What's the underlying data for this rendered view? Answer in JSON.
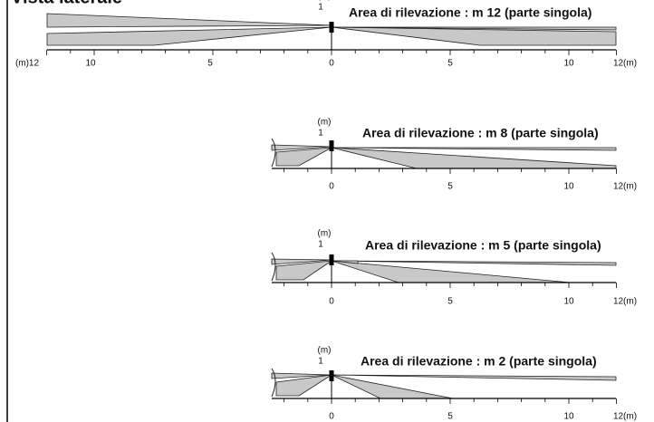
{
  "header": {
    "title": "Vista laterale"
  },
  "panels": [
    {
      "unit": "(m)",
      "height": "1",
      "title": "Area di rilevazione : m 12 (parte singola)",
      "ticks": [
        "(m)12",
        "10",
        "5",
        "0",
        "5",
        "10",
        "12(m)"
      ]
    },
    {
      "unit": "(m)",
      "height": "1",
      "title": "Area di rilevazione : m 8 (parte singola)",
      "ticks": [
        "0",
        "5",
        "10",
        "12(m)"
      ]
    },
    {
      "unit": "(m)",
      "height": "1",
      "title": "Area di rilevazione : m 5 (parte singola)",
      "ticks": [
        "0",
        "5",
        "10",
        "12(m)"
      ]
    },
    {
      "unit": "(m)",
      "height": "1",
      "title": "Area di rilevazione : m 2 (parte singola)",
      "ticks": [
        "0",
        "5",
        "10",
        "12(m)"
      ]
    }
  ]
}
